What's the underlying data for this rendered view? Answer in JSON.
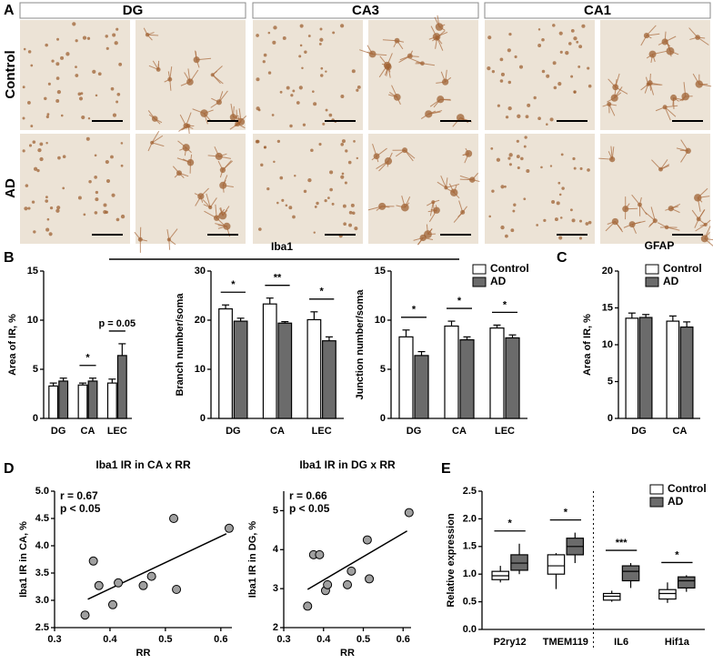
{
  "panel_labels": [
    "A",
    "B",
    "C",
    "D",
    "E"
  ],
  "panel_a": {
    "columns": [
      "DG",
      "CA3",
      "CA1"
    ],
    "rows": [
      "Control",
      "AD"
    ]
  },
  "panel_b_title": "Iba1",
  "chart_data": [
    {
      "type": "bar",
      "ylabel": "Area of IR, %",
      "categories": [
        "DG",
        "CA",
        "LEC"
      ],
      "series": [
        {
          "name": "Control",
          "color": "#ffffff",
          "values": [
            3.3,
            3.4,
            3.6
          ],
          "errors": [
            0.3,
            0.2,
            0.4
          ]
        },
        {
          "name": "AD",
          "color": "#6b6b6b",
          "values": [
            3.8,
            3.8,
            6.4
          ],
          "errors": [
            0.3,
            0.3,
            1.2
          ]
        }
      ],
      "ylim": [
        0,
        15
      ],
      "yticks": [
        0,
        5,
        10,
        15
      ],
      "significance": [
        null,
        "*",
        "p = 0.05"
      ]
    },
    {
      "type": "bar",
      "ylabel": "Branch number/soma",
      "categories": [
        "DG",
        "CA",
        "LEC"
      ],
      "series": [
        {
          "name": "Control",
          "color": "#ffffff",
          "values": [
            22.3,
            23.3,
            20.1
          ],
          "errors": [
            0.8,
            1.2,
            1.6
          ]
        },
        {
          "name": "AD",
          "color": "#6b6b6b",
          "values": [
            19.8,
            19.4,
            15.8
          ],
          "errors": [
            0.6,
            0.3,
            0.8
          ]
        }
      ],
      "ylim": [
        0,
        30
      ],
      "yticks": [
        0,
        10,
        20,
        30
      ],
      "significance": [
        "*",
        "**",
        "*"
      ]
    },
    {
      "type": "bar",
      "ylabel": "Junction number/soma",
      "categories": [
        "DG",
        "CA",
        "LEC"
      ],
      "series": [
        {
          "name": "Control",
          "color": "#ffffff",
          "values": [
            8.3,
            9.4,
            9.2
          ],
          "errors": [
            0.7,
            0.5,
            0.3
          ]
        },
        {
          "name": "AD",
          "color": "#6b6b6b",
          "values": [
            6.4,
            8.0,
            8.2
          ],
          "errors": [
            0.4,
            0.3,
            0.3
          ]
        }
      ],
      "ylim": [
        0,
        15
      ],
      "yticks": [
        0,
        5,
        10,
        15
      ],
      "significance": [
        "*",
        "*",
        "*"
      ],
      "legend": "upper right"
    },
    {
      "type": "bar",
      "title": "GFAP",
      "ylabel": "Area of IR, %",
      "categories": [
        "DG",
        "CA"
      ],
      "series": [
        {
          "name": "Control",
          "color": "#ffffff",
          "values": [
            13.6,
            13.2
          ],
          "errors": [
            0.7,
            0.7
          ]
        },
        {
          "name": "AD",
          "color": "#6b6b6b",
          "values": [
            13.7,
            12.4
          ],
          "errors": [
            0.4,
            0.7
          ]
        }
      ],
      "ylim": [
        0,
        20
      ],
      "yticks": [
        0,
        5,
        10,
        15,
        20
      ],
      "legend": "upper right"
    },
    {
      "type": "scatter",
      "title": "Iba1 IR in CA x RR",
      "annotations": [
        "r = 0.67",
        "p < 0.05"
      ],
      "xlabel": "RR",
      "ylabel": "Iba1 IR in CA, %",
      "color": "#a0a0a0",
      "x": [
        0.355,
        0.37,
        0.38,
        0.405,
        0.415,
        0.46,
        0.475,
        0.515,
        0.52,
        0.615
      ],
      "y": [
        2.73,
        3.72,
        3.27,
        2.92,
        3.32,
        3.27,
        3.44,
        4.5,
        3.2,
        4.32
      ],
      "trendline": {
        "x": [
          0.36,
          0.61
        ],
        "y": [
          3.02,
          4.22
        ]
      },
      "xlim": [
        0.3,
        0.62
      ],
      "xticks": [
        0.3,
        0.4,
        0.5,
        0.6
      ],
      "ylim": [
        2.5,
        5
      ],
      "yticks": [
        2.5,
        {
          "value": 3,
          "label": "3.0"
        },
        3.5,
        {
          "value": 4,
          "label": "4.0"
        },
        4.5,
        {
          "value": 5,
          "label": "5.0"
        }
      ]
    },
    {
      "type": "scatter",
      "title": "Iba1 IR in DG x RR",
      "annotations": [
        "r = 0.66",
        "p < 0.05"
      ],
      "xlabel": "RR",
      "ylabel": "Iba1 IR in DG, %",
      "color": "#a0a0a0",
      "x": [
        0.36,
        0.375,
        0.39,
        0.405,
        0.41,
        0.46,
        0.47,
        0.51,
        0.515,
        0.615
      ],
      "y": [
        2.55,
        3.87,
        3.87,
        2.95,
        3.1,
        3.1,
        3.45,
        4.25,
        3.25,
        4.95
      ],
      "trendline": {
        "x": [
          0.36,
          0.61
        ],
        "y": [
          2.98,
          4.48
        ]
      },
      "xlim": [
        0.3,
        0.62
      ],
      "xticks": [
        0.3,
        0.4,
        0.5,
        0.6
      ],
      "ylim": [
        2,
        5.5
      ],
      "yticks": [
        2,
        3,
        4,
        5
      ]
    },
    {
      "type": "box",
      "ylabel": "Relative expression",
      "categories": [
        "P2ry12",
        "TMEM119",
        "IL6",
        "Hif1a"
      ],
      "series": [
        {
          "name": "Control",
          "color": "#ffffff",
          "min": [
            0.85,
            0.73,
            0.5,
            0.48
          ],
          "q1": [
            0.9,
            1.0,
            0.53,
            0.55
          ],
          "median": [
            0.97,
            1.15,
            0.6,
            0.65
          ],
          "q3": [
            1.05,
            1.35,
            0.65,
            0.72
          ],
          "max": [
            1.15,
            1.38,
            0.7,
            0.85
          ]
        },
        {
          "name": "AD",
          "color": "#6b6b6b",
          "min": [
            1.0,
            1.2,
            0.75,
            0.68
          ],
          "q1": [
            1.07,
            1.35,
            0.88,
            0.75
          ],
          "median": [
            1.2,
            1.5,
            1.05,
            0.88
          ],
          "q3": [
            1.35,
            1.65,
            1.15,
            0.95
          ],
          "max": [
            1.55,
            1.75,
            1.2,
            0.98
          ]
        }
      ],
      "ylim": [
        0,
        2.5
      ],
      "yticks": [
        {
          "value": 0,
          "label": "0.0"
        },
        0.5,
        {
          "value": 1,
          "label": "1.0"
        },
        1.5,
        {
          "value": 2,
          "label": "2.0"
        },
        2.5
      ],
      "significance": [
        "*",
        "*",
        "***",
        "*"
      ],
      "legend": "upper right"
    }
  ]
}
